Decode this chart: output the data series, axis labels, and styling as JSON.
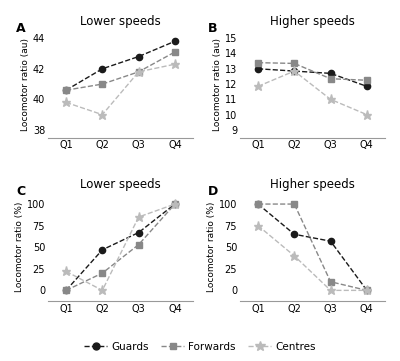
{
  "quarters": [
    "Q1",
    "Q2",
    "Q3",
    "Q4"
  ],
  "panel_A": {
    "title": "Lower speeds",
    "ylabel": "Locomotor ratio (au)",
    "ylim": [
      37.5,
      44.5
    ],
    "yticks": [
      38,
      40,
      42,
      44
    ],
    "guards": [
      40.6,
      42.0,
      42.8,
      43.8
    ],
    "forwards": [
      40.6,
      41.0,
      41.8,
      43.1
    ],
    "centres": [
      39.8,
      39.0,
      41.8,
      42.3
    ]
  },
  "panel_B": {
    "title": "Higher speeds",
    "ylabel": "Locomotor ratio (au)",
    "ylim": [
      8.5,
      15.5
    ],
    "yticks": [
      9,
      10,
      11,
      12,
      13,
      14,
      15
    ],
    "guards": [
      13.0,
      12.85,
      12.7,
      11.85
    ],
    "forwards": [
      13.4,
      13.35,
      12.35,
      12.25
    ],
    "centres": [
      11.85,
      12.85,
      11.0,
      10.0
    ]
  },
  "panel_C": {
    "title": "Lower speeds",
    "ylabel": "Locomotor ratio (%)",
    "ylim": [
      -12,
      112
    ],
    "yticks": [
      0,
      25,
      50,
      75,
      100
    ],
    "guards": [
      0,
      47,
      67,
      100
    ],
    "forwards": [
      0,
      20,
      53,
      100
    ],
    "centres": [
      22,
      0,
      85,
      100
    ]
  },
  "panel_D": {
    "title": "Higher speeds",
    "ylabel": "Locomotor ratio (%)",
    "ylim": [
      -12,
      112
    ],
    "yticks": [
      0,
      25,
      50,
      75,
      100
    ],
    "guards": [
      100,
      65,
      57,
      0
    ],
    "forwards": [
      100,
      100,
      10,
      0
    ],
    "centres": [
      75,
      40,
      0,
      0
    ]
  },
  "guard_color": "#1a1a1a",
  "forward_color": "#888888",
  "centre_color": "#bbbbbb",
  "legend_labels": [
    "Guards",
    "Forwards",
    "Centres"
  ],
  "bg_color": "#f5f5f0"
}
